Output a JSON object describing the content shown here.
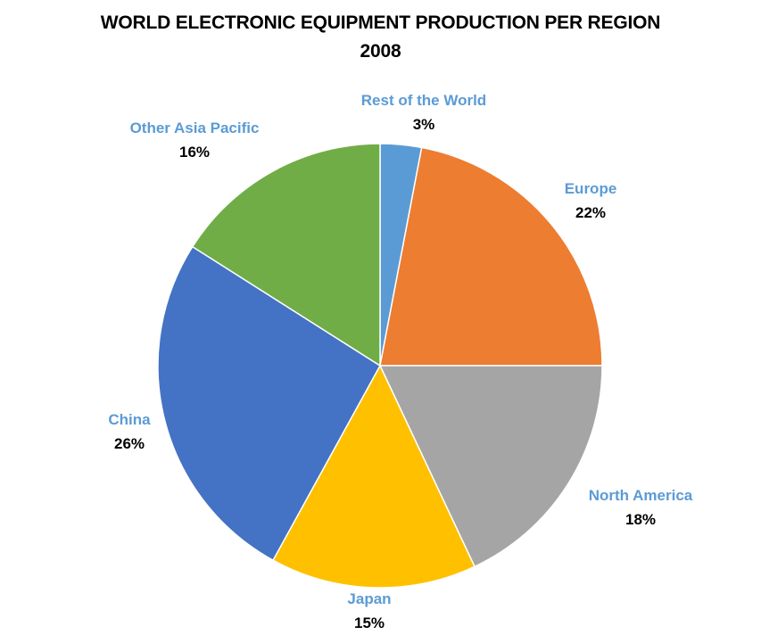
{
  "chart_data": {
    "type": "pie",
    "title": "WORLD ELECTRONIC EQUIPMENT PRODUCTION PER REGION",
    "subtitle": "2008",
    "label_color": "#5b9bd5",
    "slices": [
      {
        "name": "Rest of the World",
        "value": 3,
        "label": "3%",
        "color": "#5b9bd5"
      },
      {
        "name": "Europe",
        "value": 22,
        "label": "22%",
        "color": "#ed7d31"
      },
      {
        "name": "North America",
        "value": 18,
        "label": "18%",
        "color": "#a5a5a5"
      },
      {
        "name": "Japan",
        "value": 15,
        "label": "15%",
        "color": "#ffc000"
      },
      {
        "name": "China",
        "value": 26,
        "label": "26%",
        "color": "#4472c4"
      },
      {
        "name": "Other Asia Pacific",
        "value": 16,
        "label": "16%",
        "color": "#70ad47"
      }
    ]
  }
}
